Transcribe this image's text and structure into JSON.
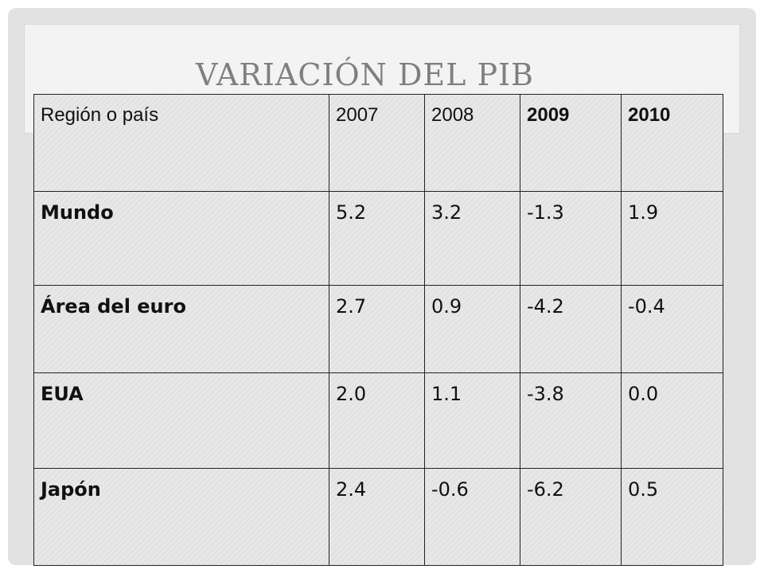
{
  "title": "VARIACIÓN DEL PIB",
  "table": {
    "headers": [
      "Región o país",
      "2007",
      "2008",
      "2009",
      "2010"
    ],
    "rows": [
      {
        "region": "Mundo",
        "values": [
          "5.2",
          "3.2",
          "-1.3",
          "1.9"
        ]
      },
      {
        "region": "Área del euro",
        "values": [
          "2.7",
          "0.9",
          "-4.2",
          "-0.4"
        ]
      },
      {
        "region": "EUA",
        "values": [
          "2.0",
          "1.1",
          "-3.8",
          "0.0"
        ]
      },
      {
        "region": "Japón",
        "values": [
          "2.4",
          "-0.6",
          "-6.2",
          "0.5"
        ]
      }
    ]
  }
}
